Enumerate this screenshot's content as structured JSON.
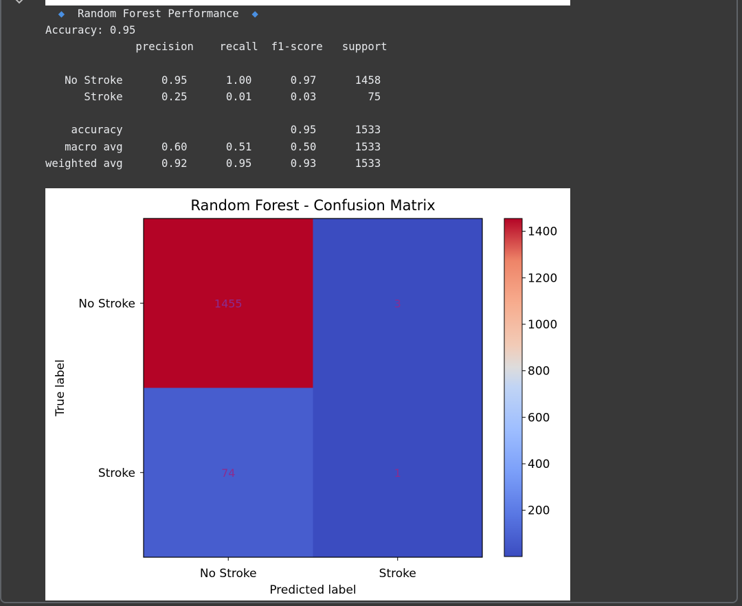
{
  "report": {
    "heading": "Random Forest Performance",
    "accuracy_line": "Accuracy: 0.95",
    "columns": [
      "precision",
      "recall",
      "f1-score",
      "support"
    ],
    "rows": [
      {
        "label": "No Stroke",
        "precision": "0.95",
        "recall": "1.00",
        "f1": "0.97",
        "support": "1458"
      },
      {
        "label": "Stroke",
        "precision": "0.25",
        "recall": "0.01",
        "f1": "0.03",
        "support": "75"
      }
    ],
    "summary": [
      {
        "label": "accuracy",
        "precision": "",
        "recall": "",
        "f1": "0.95",
        "support": "1533"
      },
      {
        "label": "macro avg",
        "precision": "0.60",
        "recall": "0.51",
        "f1": "0.50",
        "support": "1533"
      },
      {
        "label": "weighted avg",
        "precision": "0.92",
        "recall": "0.95",
        "f1": "0.93",
        "support": "1533"
      }
    ]
  },
  "chart_data": {
    "type": "heatmap",
    "title": "Random Forest - Confusion Matrix",
    "xlabel": "Predicted label",
    "ylabel": "True label",
    "x_categories": [
      "No Stroke",
      "Stroke"
    ],
    "y_categories": [
      "No Stroke",
      "Stroke"
    ],
    "values": [
      [
        1455,
        3
      ],
      [
        74,
        1
      ]
    ],
    "colormap": "coolwarm",
    "colorbar": {
      "min": 1,
      "max": 1455,
      "ticks": [
        200,
        400,
        600,
        800,
        1000,
        1200,
        1400
      ]
    },
    "colors": {
      "high": "#b40426",
      "low": "#3b4cc0",
      "text_color": "#8b2c8f"
    }
  }
}
